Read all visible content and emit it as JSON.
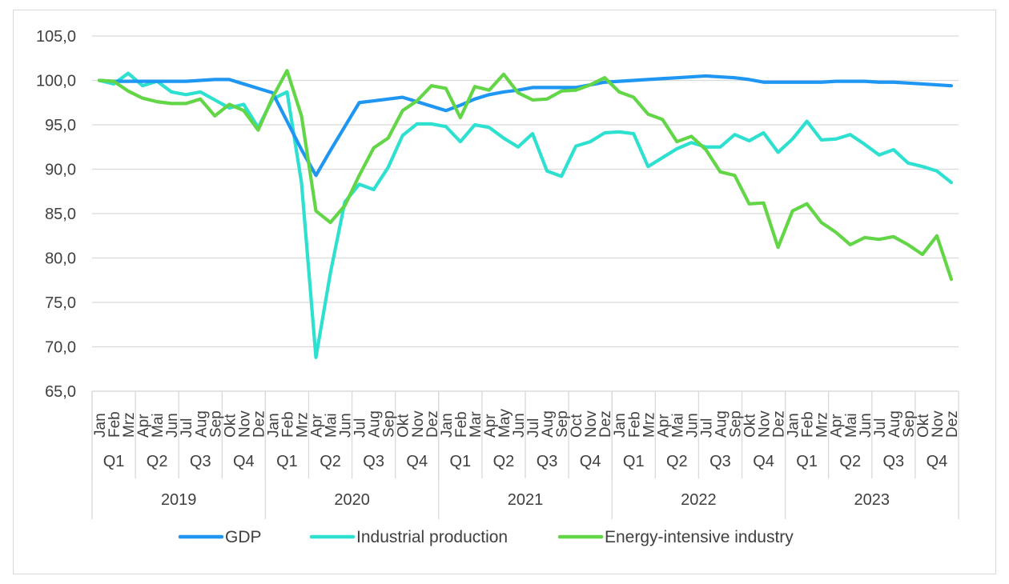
{
  "chart_data": {
    "type": "line",
    "title": "",
    "xlabel": "",
    "ylabel": "",
    "ylim": [
      65,
      105
    ],
    "yticks": [
      "65,0",
      "70,0",
      "75,0",
      "80,0",
      "85,0",
      "90,0",
      "95,0",
      "100,0",
      "105,0"
    ],
    "grid": "horizontal",
    "legend": "bottom",
    "years": [
      "2019",
      "2020",
      "2021",
      "2022",
      "2023"
    ],
    "quarters": [
      "Q1",
      "Q2",
      "Q3",
      "Q4"
    ],
    "months": [
      [
        "Jan",
        "Feb",
        "Mrz",
        "Apr",
        "Mai",
        "Jun",
        "Jul",
        "Aug",
        "Sep",
        "Okt",
        "Nov",
        "Dez"
      ],
      [
        "Jan",
        "Feb",
        "Mrz",
        "Apr",
        "Mai",
        "Jun",
        "Jul",
        "Aug",
        "Sep",
        "Okt",
        "Nov",
        "Dez"
      ],
      [
        "Jan",
        "Feb",
        "Mar",
        "Apr",
        "May",
        "Jun",
        "Jul",
        "Aug",
        "Sep",
        "Oct",
        "Nov",
        "Dez"
      ],
      [
        "Jan",
        "Feb",
        "Mrz",
        "Apr",
        "Mai",
        "Jun",
        "Jul",
        "Aug",
        "Sep",
        "Okt",
        "Nov",
        "Dez"
      ],
      [
        "Jan",
        "Feb",
        "Mrz",
        "Apr",
        "Mai",
        "Jun",
        "Jul",
        "Aug",
        "Sep",
        "Okt",
        "Nov",
        "Dez"
      ]
    ],
    "series": [
      {
        "name": "GDP",
        "color": "#1f96f2",
        "values": [
          100.0,
          99.9,
          99.9,
          99.9,
          99.9,
          99.9,
          99.9,
          100.0,
          100.1,
          100.1,
          99.6,
          99.1,
          98.6,
          95.4,
          92.2,
          89.3,
          92.1,
          94.8,
          97.5,
          97.7,
          97.9,
          98.1,
          97.6,
          97.1,
          96.6,
          97.2,
          97.9,
          98.4,
          98.7,
          98.9,
          99.2,
          99.2,
          99.2,
          99.2,
          99.5,
          99.8,
          99.9,
          100.0,
          100.1,
          100.2,
          100.3,
          100.4,
          100.5,
          100.4,
          100.3,
          100.1,
          99.8,
          99.8,
          99.8,
          99.8,
          99.8,
          99.9,
          99.9,
          99.9,
          99.8,
          99.8,
          99.7,
          99.6,
          99.5,
          99.4
        ]
      },
      {
        "name": "Industrial production",
        "color": "#2ee0cf",
        "values": [
          100.0,
          99.6,
          100.8,
          99.4,
          99.9,
          98.7,
          98.4,
          98.7,
          97.8,
          96.9,
          97.3,
          94.7,
          97.9,
          98.7,
          88.5,
          68.8,
          78.3,
          86.3,
          88.3,
          87.7,
          90.2,
          93.8,
          95.1,
          95.1,
          94.8,
          93.1,
          95.0,
          94.7,
          93.5,
          92.5,
          94.0,
          89.8,
          89.2,
          92.6,
          93.1,
          94.1,
          94.2,
          94.0,
          90.3,
          91.3,
          92.3,
          93.0,
          92.5,
          92.5,
          93.9,
          93.2,
          94.1,
          91.9,
          93.4,
          95.4,
          93.3,
          93.4,
          93.9,
          92.8,
          91.6,
          92.2,
          90.7,
          90.3,
          89.8,
          88.5
        ]
      },
      {
        "name": "Energy-intensive industry",
        "color": "#62d647",
        "values": [
          100.0,
          99.9,
          98.8,
          98.0,
          97.6,
          97.4,
          97.4,
          97.9,
          96.0,
          97.3,
          96.6,
          94.4,
          98.1,
          101.1,
          96.0,
          85.3,
          84.0,
          85.9,
          89.3,
          92.4,
          93.5,
          96.6,
          97.7,
          99.4,
          99.1,
          95.8,
          99.3,
          98.9,
          100.7,
          98.6,
          97.8,
          97.9,
          98.8,
          98.9,
          99.5,
          100.3,
          98.7,
          98.1,
          96.2,
          95.6,
          93.1,
          93.7,
          92.2,
          89.7,
          89.3,
          86.1,
          86.2,
          81.2,
          85.3,
          86.1,
          84.0,
          82.9,
          81.5,
          82.3,
          82.1,
          82.4,
          81.5,
          80.4,
          82.5,
          77.6
        ]
      }
    ]
  }
}
